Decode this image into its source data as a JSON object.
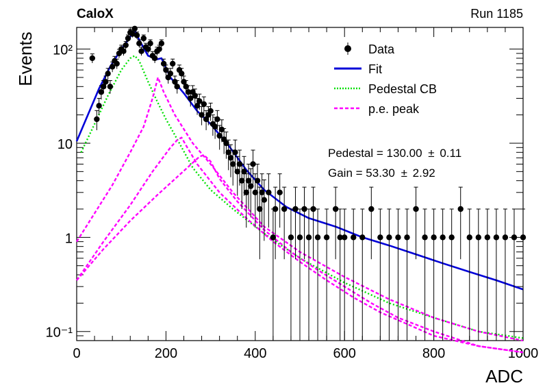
{
  "header": {
    "experiment": "CaloX",
    "run": "Run 1185"
  },
  "fit_results": {
    "pedestal": "Pedestal = 130.00",
    "pedestal_err": "0.11",
    "gain": "Gain = 53.30",
    "gain_err": "2.92",
    "pm": "±"
  },
  "legend": [
    {
      "label": "Data",
      "color": "#000000",
      "style": "marker"
    },
    {
      "label": "Fit",
      "color": "#0000d8",
      "style": "solid"
    },
    {
      "label": "Pedestal CB",
      "color": "#00e000",
      "style": "dotted"
    },
    {
      "label": "p.e. peak",
      "color": "#ff00ff",
      "style": "dashed"
    }
  ],
  "chart_data": {
    "type": "scatter",
    "xlabel": "ADC",
    "ylabel": "Events",
    "xlim": [
      0,
      1000
    ],
    "ylim": [
      0.08,
      170
    ],
    "yscale": "log",
    "grid": false,
    "legend_position": "top-right",
    "x_ticks": [
      0,
      200,
      400,
      600,
      800,
      1000
    ],
    "x_tick_labels": [
      "0",
      "200",
      "400",
      "600",
      "800",
      "1000"
    ],
    "y_ticks": [
      0.1,
      1,
      10,
      100
    ],
    "y_tick_labels": [
      "10⁻¹",
      "1",
      "10",
      "10²"
    ],
    "series": [
      {
        "name": "Data",
        "x": [
          35,
          45,
          50,
          55,
          60,
          65,
          70,
          75,
          80,
          85,
          90,
          95,
          100,
          105,
          110,
          115,
          120,
          125,
          130,
          135,
          140,
          145,
          150,
          155,
          160,
          165,
          170,
          175,
          180,
          185,
          190,
          195,
          200,
          205,
          210,
          215,
          220,
          225,
          230,
          235,
          240,
          245,
          250,
          255,
          260,
          265,
          270,
          275,
          280,
          285,
          290,
          295,
          300,
          305,
          310,
          315,
          320,
          325,
          330,
          335,
          340,
          345,
          350,
          355,
          360,
          365,
          370,
          375,
          380,
          385,
          390,
          395,
          400,
          405,
          410,
          415,
          420,
          430,
          440,
          445,
          455,
          465,
          480,
          490,
          500,
          510,
          520,
          530,
          540,
          560,
          580,
          590,
          600,
          620,
          640,
          660,
          680,
          700,
          720,
          740,
          760,
          780,
          800,
          820,
          840,
          860,
          880,
          900,
          920,
          940,
          960,
          980,
          1000
        ],
        "y": [
          80,
          18,
          25,
          35,
          40,
          45,
          55,
          40,
          65,
          75,
          70,
          90,
          100,
          95,
          110,
          130,
          150,
          145,
          165,
          140,
          115,
          95,
          130,
          105,
          100,
          115,
          85,
          80,
          95,
          100,
          115,
          70,
          60,
          50,
          55,
          70,
          45,
          40,
          60,
          55,
          45,
          40,
          35,
          30,
          35,
          32,
          25,
          28,
          20,
          26,
          18,
          20,
          22,
          16,
          15,
          18,
          12,
          14,
          11,
          10,
          8,
          7,
          6,
          8,
          5,
          6,
          4,
          5,
          3,
          4,
          3.5,
          6,
          3,
          4,
          2,
          3,
          2.5,
          3,
          1,
          2,
          3,
          2,
          1,
          2,
          1,
          2,
          1,
          2,
          1,
          1,
          2,
          1,
          1,
          1,
          1,
          2,
          1,
          1,
          1,
          1,
          2,
          1,
          1,
          1,
          1,
          2,
          1,
          1,
          1,
          1,
          1,
          1,
          1
        ]
      },
      {
        "name": "Fit",
        "x": [
          0,
          25,
          50,
          75,
          100,
          120,
          130,
          140,
          160,
          180,
          190,
          210,
          240,
          270,
          300,
          340,
          380,
          420,
          470,
          520,
          580,
          640,
          700,
          760,
          820,
          880,
          940,
          1000
        ],
        "y": [
          10.5,
          20,
          38,
          65,
          100,
          135,
          160,
          125,
          85,
          78,
          80,
          50,
          34,
          22,
          16,
          9.5,
          5.2,
          3.2,
          2.1,
          1.6,
          1.3,
          1.0,
          0.82,
          0.66,
          0.53,
          0.43,
          0.35,
          0.28
        ]
      },
      {
        "name": "Pedestal CB",
        "x": [
          10,
          40,
          70,
          100,
          120,
          130,
          140,
          160,
          180,
          200,
          230,
          260,
          300,
          350,
          420,
          500,
          600,
          700,
          800,
          900,
          1000
        ],
        "y": [
          8,
          16,
          32,
          60,
          80,
          85,
          75,
          45,
          28,
          18,
          10,
          5.5,
          3.2,
          2.0,
          1.1,
          0.6,
          0.33,
          0.2,
          0.14,
          0.1,
          0.085
        ]
      },
      {
        "name": "p.e. peak 1",
        "x": [
          0,
          40,
          80,
          120,
          150,
          170,
          182,
          195,
          220,
          260,
          300,
          350,
          420,
          500,
          600,
          700,
          800,
          900,
          1000
        ],
        "y": [
          0.9,
          1.8,
          3.6,
          8,
          15,
          30,
          50,
          35,
          20,
          10,
          6,
          3,
          1.3,
          0.7,
          0.38,
          0.22,
          0.14,
          0.1,
          0.08
        ]
      },
      {
        "name": "p.e. peak 2",
        "x": [
          0,
          60,
          120,
          170,
          210,
          225,
          235,
          245,
          270,
          320,
          380,
          440,
          500,
          560,
          620,
          680,
          740,
          800,
          900,
          1000
        ],
        "y": [
          0.35,
          0.9,
          2.2,
          5.0,
          9.0,
          10.8,
          11.5,
          9.5,
          6.0,
          3.0,
          1.6,
          0.9,
          0.55,
          0.35,
          0.23,
          0.16,
          0.12,
          0.09,
          0.07,
          0.06
        ]
      },
      {
        "name": "p.e. peak 3",
        "x": [
          0,
          60,
          120,
          180,
          230,
          260,
          275,
          285,
          300,
          320,
          360,
          420,
          480,
          540,
          600,
          660,
          720,
          800,
          900,
          1000
        ],
        "y": [
          0.35,
          0.75,
          1.5,
          2.8,
          4.6,
          6.2,
          7.2,
          7.5,
          6.4,
          4.2,
          2.4,
          1.2,
          0.7,
          0.45,
          0.3,
          0.2,
          0.14,
          0.1,
          0.07,
          0.06
        ]
      }
    ]
  }
}
